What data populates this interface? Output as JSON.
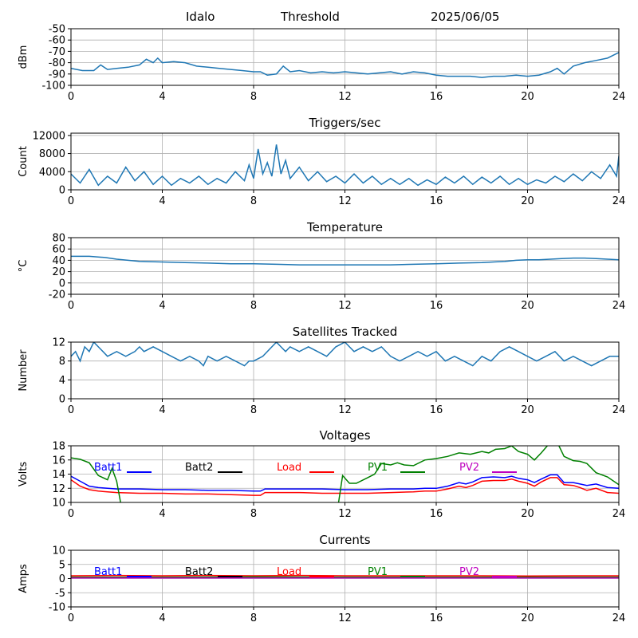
{
  "header": {
    "station": "Idalo",
    "mode": "Threshold",
    "date": "2025/06/05"
  },
  "colors": {
    "default_line": "#1f77b4",
    "grid": "#b0b0b0",
    "batt1": "#0000ff",
    "batt2": "#000000",
    "load": "#ff0000",
    "pv1": "#008000",
    "pv2": "#bf00bf"
  },
  "chart_data": [
    {
      "id": "signal",
      "type": "line",
      "title": "",
      "ylabel": "dBm",
      "xlim": [
        0,
        24
      ],
      "ylim": [
        -100,
        -50
      ],
      "xticks": [
        0,
        4,
        8,
        12,
        16,
        20,
        24
      ],
      "yticks": [
        -100,
        -90,
        -80,
        -70,
        -60,
        -50
      ],
      "grid": true,
      "series": [
        {
          "color": "#1f77b4",
          "x": [
            0,
            0.5,
            1,
            1.3,
            1.6,
            2,
            2.5,
            3,
            3.3,
            3.6,
            3.8,
            4,
            4.5,
            5,
            5.5,
            6,
            6.5,
            7,
            7.5,
            8,
            8.3,
            8.6,
            9,
            9.3,
            9.6,
            10,
            10.5,
            11,
            11.5,
            12,
            12.5,
            13,
            13.5,
            14,
            14.5,
            15,
            15.5,
            16,
            16.5,
            17,
            17.5,
            18,
            18.5,
            19,
            19.5,
            20,
            20.5,
            21,
            21.3,
            21.6,
            22,
            22.5,
            23,
            23.5,
            24
          ],
          "y": [
            -85,
            -87,
            -87,
            -82,
            -86,
            -85,
            -84,
            -82,
            -77,
            -80,
            -76,
            -80,
            -79,
            -80,
            -83,
            -84,
            -85,
            -86,
            -87,
            -88,
            -88,
            -91,
            -90,
            -83,
            -88,
            -87,
            -89,
            -88,
            -89,
            -88,
            -89,
            -90,
            -89,
            -88,
            -90,
            -88,
            -89,
            -91,
            -92,
            -92,
            -92,
            -93,
            -92,
            -92,
            -91,
            -92,
            -91,
            -88,
            -85,
            -90,
            -83,
            -80,
            -78,
            -76,
            -71
          ]
        }
      ]
    },
    {
      "id": "triggers",
      "type": "line",
      "title": "Triggers/sec",
      "ylabel": "Count",
      "xlim": [
        0,
        24
      ],
      "ylim": [
        0,
        12500
      ],
      "xticks": [
        0,
        4,
        8,
        12,
        16,
        20,
        24
      ],
      "yticks": [
        0,
        4000,
        8000,
        12000
      ],
      "grid": true,
      "series": [
        {
          "color": "#1f77b4",
          "x": [
            0,
            0.4,
            0.8,
            1.2,
            1.6,
            2,
            2.4,
            2.8,
            3.2,
            3.6,
            4,
            4.4,
            4.8,
            5.2,
            5.6,
            6,
            6.4,
            6.8,
            7.2,
            7.6,
            7.8,
            8,
            8.2,
            8.4,
            8.6,
            8.8,
            9,
            9.2,
            9.4,
            9.6,
            10,
            10.4,
            10.8,
            11.2,
            11.6,
            12,
            12.4,
            12.8,
            13.2,
            13.6,
            14,
            14.4,
            14.8,
            15.2,
            15.6,
            16,
            16.4,
            16.8,
            17.2,
            17.6,
            18,
            18.4,
            18.8,
            19.2,
            19.6,
            20,
            20.4,
            20.8,
            21.2,
            21.6,
            22,
            22.4,
            22.8,
            23.2,
            23.6,
            23.9,
            24
          ],
          "y": [
            3500,
            1500,
            4500,
            1000,
            3000,
            1500,
            5000,
            2000,
            4000,
            1200,
            3000,
            1000,
            2500,
            1500,
            3000,
            1200,
            2500,
            1500,
            4000,
            2000,
            5500,
            2500,
            9000,
            3500,
            6000,
            3000,
            10000,
            3500,
            6500,
            2500,
            5000,
            2000,
            4000,
            1800,
            3000,
            1500,
            3500,
            1500,
            3000,
            1200,
            2500,
            1200,
            2500,
            1000,
            2200,
            1200,
            2800,
            1500,
            3000,
            1200,
            2800,
            1500,
            3000,
            1200,
            2500,
            1200,
            2200,
            1500,
            3000,
            1800,
            3500,
            2000,
            4000,
            2500,
            5500,
            3000,
            7500
          ]
        }
      ]
    },
    {
      "id": "temperature",
      "type": "line",
      "title": "Temperature",
      "ylabel": "°C",
      "xlim": [
        0,
        24
      ],
      "ylim": [
        -20,
        80
      ],
      "xticks": [
        0,
        4,
        8,
        12,
        16,
        20,
        24
      ],
      "yticks": [
        -20,
        0,
        20,
        40,
        60,
        80
      ],
      "grid": true,
      "series": [
        {
          "color": "#1f77b4",
          "x": [
            0,
            0.8,
            1.5,
            2,
            3,
            4,
            5,
            6,
            7,
            8,
            9,
            10,
            11,
            12,
            13,
            14,
            15,
            16,
            17,
            18,
            19,
            19.5,
            20,
            20.5,
            21,
            21.5,
            22,
            22.5,
            23,
            23.5,
            24
          ],
          "y": [
            47,
            47,
            45,
            42,
            38,
            37,
            36,
            35,
            34,
            34,
            33,
            32,
            32,
            32,
            32,
            32,
            33,
            34,
            35,
            36,
            38,
            40,
            41,
            41,
            42,
            43,
            44,
            44,
            43,
            42,
            41
          ]
        }
      ]
    },
    {
      "id": "satellites",
      "type": "line",
      "title": "Satellites Tracked",
      "ylabel": "Number",
      "xlim": [
        0,
        24
      ],
      "ylim": [
        0,
        12
      ],
      "xticks": [
        0,
        4,
        8,
        12,
        16,
        20,
        24
      ],
      "yticks": [
        0,
        4,
        8,
        12
      ],
      "grid": true,
      "series": [
        {
          "color": "#1f77b4",
          "x": [
            0,
            0.2,
            0.4,
            0.6,
            0.8,
            1,
            1.2,
            1.4,
            1.6,
            2,
            2.4,
            2.8,
            3,
            3.2,
            3.6,
            4,
            4.4,
            4.8,
            5.2,
            5.6,
            5.8,
            6,
            6.4,
            6.8,
            7.2,
            7.6,
            7.8,
            8,
            8.4,
            8.8,
            9,
            9.2,
            9.4,
            9.6,
            10,
            10.4,
            10.8,
            11.2,
            11.6,
            12,
            12.2,
            12.4,
            12.8,
            13.2,
            13.6,
            14,
            14.4,
            14.8,
            15.2,
            15.6,
            16,
            16.4,
            16.8,
            17.2,
            17.6,
            18,
            18.4,
            18.8,
            19.2,
            19.6,
            20,
            20.4,
            20.8,
            21.2,
            21.6,
            22,
            22.4,
            22.8,
            23.2,
            23.6,
            24
          ],
          "y": [
            9,
            10,
            8,
            11,
            10,
            12,
            11,
            10,
            9,
            10,
            9,
            10,
            11,
            10,
            11,
            10,
            9,
            8,
            9,
            8,
            7,
            9,
            8,
            9,
            8,
            7,
            8,
            8,
            9,
            11,
            12,
            11,
            10,
            11,
            10,
            11,
            10,
            9,
            11,
            12,
            11,
            10,
            11,
            10,
            11,
            9,
            8,
            9,
            10,
            9,
            10,
            8,
            9,
            8,
            7,
            9,
            8,
            10,
            11,
            10,
            9,
            8,
            9,
            10,
            8,
            9,
            8,
            7,
            8,
            9,
            9
          ]
        }
      ]
    },
    {
      "id": "voltages",
      "type": "line",
      "title": "Voltages",
      "ylabel": "Volts",
      "xlim": [
        0,
        24
      ],
      "ylim": [
        10,
        18
      ],
      "xticks": [
        0,
        4,
        8,
        12,
        16,
        20,
        24
      ],
      "yticks": [
        10,
        12,
        14,
        16,
        18
      ],
      "grid": true,
      "legend": "top",
      "series": [
        {
          "name": "Batt1",
          "color": "#0000ff",
          "x": [
            0,
            0.4,
            0.8,
            1.2,
            1.6,
            2,
            3,
            4,
            5,
            6,
            7,
            8,
            8.3,
            8.5,
            9,
            10,
            11,
            12,
            13,
            14,
            15,
            15.5,
            16,
            16.5,
            17,
            17.3,
            17.6,
            18,
            18.5,
            19,
            19.3,
            19.6,
            20,
            20.3,
            20.6,
            21,
            21.3,
            21.6,
            22,
            22.3,
            22.6,
            23,
            23.5,
            24
          ],
          "y": [
            13.7,
            13,
            12.3,
            12.1,
            12,
            11.9,
            11.9,
            11.8,
            11.8,
            11.7,
            11.7,
            11.6,
            11.6,
            11.9,
            11.9,
            11.9,
            11.9,
            11.8,
            11.8,
            11.9,
            11.9,
            12,
            12,
            12.3,
            12.8,
            12.6,
            12.9,
            13.5,
            13.6,
            13.5,
            13.7,
            13.4,
            13.2,
            12.8,
            13.3,
            13.9,
            13.9,
            12.8,
            12.8,
            12.6,
            12.4,
            12.6,
            12.1,
            12
          ]
        },
        {
          "name": "Batt2",
          "color": "#000000",
          "x": [],
          "y": []
        },
        {
          "name": "Load",
          "color": "#ff0000",
          "x": [
            0,
            0.4,
            0.8,
            1.2,
            1.6,
            2,
            3,
            4,
            5,
            6,
            7,
            8,
            8.3,
            8.5,
            9,
            10,
            11,
            12,
            13,
            14,
            15,
            15.5,
            16,
            16.5,
            17,
            17.3,
            17.6,
            18,
            18.5,
            19,
            19.3,
            19.6,
            20,
            20.3,
            20.6,
            21,
            21.3,
            21.6,
            22,
            22.3,
            22.6,
            23,
            23.5,
            24
          ],
          "y": [
            13.2,
            12.3,
            11.8,
            11.6,
            11.5,
            11.4,
            11.3,
            11.3,
            11.2,
            11.2,
            11.1,
            11,
            11,
            11.4,
            11.4,
            11.4,
            11.3,
            11.3,
            11.3,
            11.4,
            11.5,
            11.6,
            11.6,
            11.9,
            12.3,
            12.1,
            12.4,
            13,
            13.1,
            13.1,
            13.3,
            13,
            12.7,
            12.3,
            12.9,
            13.5,
            13.5,
            12.5,
            12.4,
            12.1,
            11.7,
            12,
            11.4,
            11.3
          ]
        },
        {
          "name": "PV1",
          "color": "#008000",
          "x": [
            0,
            0.4,
            0.8,
            1.2,
            1.6,
            1.8,
            2,
            2.2,
            11.7,
            11.9,
            12.2,
            12.5,
            13,
            13.3,
            13.6,
            14,
            14.3,
            14.6,
            15,
            15.5,
            16,
            16.5,
            17,
            17.5,
            18,
            18.3,
            18.6,
            19,
            19.3,
            19.6,
            20,
            20.3,
            20.6,
            21,
            21.3,
            21.6,
            22,
            22.3,
            22.6,
            23,
            23.5,
            24
          ],
          "y": [
            16.3,
            16.1,
            15.6,
            13.8,
            13.2,
            14.8,
            13,
            9.5,
            9.5,
            13.8,
            12.7,
            12.7,
            13.5,
            14,
            15.5,
            15.3,
            15.6,
            15.3,
            15.2,
            16,
            16.2,
            16.5,
            17,
            16.8,
            17.2,
            17,
            17.5,
            17.6,
            18,
            17.2,
            16.8,
            16,
            17,
            18.5,
            18.5,
            16.5,
            15.9,
            15.8,
            15.5,
            14.2,
            13.6,
            12.5
          ]
        },
        {
          "name": "PV2",
          "color": "#bf00bf",
          "x": [],
          "y": []
        }
      ]
    },
    {
      "id": "currents",
      "type": "line",
      "title": "Currents",
      "ylabel": "Amps",
      "xlim": [
        0,
        24
      ],
      "ylim": [
        -10,
        10
      ],
      "xticks": [
        0,
        4,
        8,
        12,
        16,
        20,
        24
      ],
      "yticks": [
        -10,
        -5,
        0,
        5,
        10
      ],
      "grid": true,
      "legend": "top",
      "series": [
        {
          "name": "Batt1",
          "color": "#0000ff",
          "x": [
            0,
            4,
            8,
            12,
            16,
            20,
            24
          ],
          "y": [
            0.3,
            0.3,
            0.4,
            0.3,
            0.3,
            0.3,
            0.4
          ]
        },
        {
          "name": "Batt2",
          "color": "#000000",
          "x": [],
          "y": []
        },
        {
          "name": "Load",
          "color": "#ff0000",
          "x": [
            0,
            2,
            4,
            6,
            8,
            10,
            12,
            14,
            16,
            18,
            20,
            22,
            24
          ],
          "y": [
            1,
            1.1,
            1,
            1.1,
            1,
            1.1,
            1,
            1,
            1,
            1,
            0.9,
            1,
            1
          ]
        },
        {
          "name": "PV1",
          "color": "#008000",
          "x": [
            0,
            4,
            8,
            12,
            16,
            20,
            24
          ],
          "y": [
            0.5,
            0.5,
            0.6,
            0.5,
            0.5,
            0.5,
            0.5
          ]
        },
        {
          "name": "PV2",
          "color": "#bf00bf",
          "x": [
            0,
            4,
            8,
            12,
            16,
            20,
            24
          ],
          "y": [
            0.2,
            0.2,
            0.2,
            0.2,
            0.2,
            0.2,
            0.2
          ]
        }
      ]
    }
  ]
}
